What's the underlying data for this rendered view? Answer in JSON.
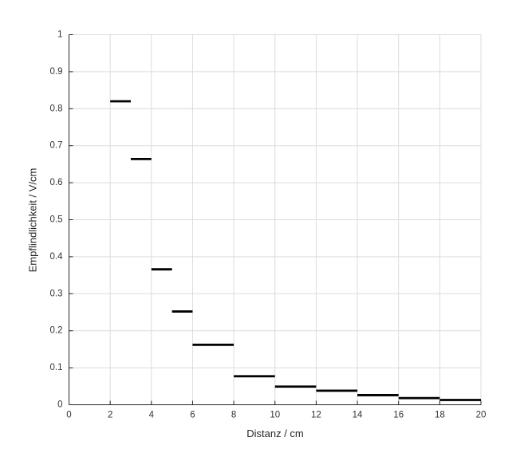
{
  "chart_data": {
    "type": "line",
    "subtype": "horizontal-interval-segments",
    "title": "",
    "xlabel": "Distanz / cm",
    "ylabel": "Empflindlichkeit / V/cm",
    "xlim": [
      0,
      20
    ],
    "ylim": [
      0,
      1
    ],
    "xticks": [
      0,
      2,
      4,
      6,
      8,
      10,
      12,
      14,
      16,
      18,
      20
    ],
    "xtick_labels": [
      "0",
      "2",
      "4",
      "6",
      "8",
      "10",
      "12",
      "14",
      "16",
      "18",
      "20"
    ],
    "yticks": [
      0,
      0.1,
      0.2,
      0.3,
      0.4,
      0.5,
      0.6,
      0.7,
      0.8,
      0.9,
      1
    ],
    "ytick_labels": [
      "0",
      "0.1",
      "0.2",
      "0.3",
      "0.4",
      "0.5",
      "0.6",
      "0.7",
      "0.8",
      "0.9",
      "1"
    ],
    "grid": true,
    "legend": "none",
    "series": [
      {
        "name": "Empfindlichkeit",
        "color": "#000000",
        "segments": [
          {
            "x1": 2,
            "x2": 3,
            "y": 0.82
          },
          {
            "x1": 3,
            "x2": 4,
            "y": 0.664
          },
          {
            "x1": 4,
            "x2": 5,
            "y": 0.366
          },
          {
            "x1": 5,
            "x2": 6,
            "y": 0.252
          },
          {
            "x1": 6,
            "x2": 8,
            "y": 0.162
          },
          {
            "x1": 8,
            "x2": 10,
            "y": 0.077
          },
          {
            "x1": 10,
            "x2": 12,
            "y": 0.049
          },
          {
            "x1": 12,
            "x2": 14,
            "y": 0.038
          },
          {
            "x1": 14,
            "x2": 16,
            "y": 0.026
          },
          {
            "x1": 16,
            "x2": 18,
            "y": 0.018
          },
          {
            "x1": 18,
            "x2": 20,
            "y": 0.013
          }
        ]
      }
    ],
    "colors": {
      "background": "#ffffff",
      "grid": "#dcdcdc",
      "axis": "#262626",
      "tick_text": "#333333",
      "line": "#000000"
    }
  }
}
